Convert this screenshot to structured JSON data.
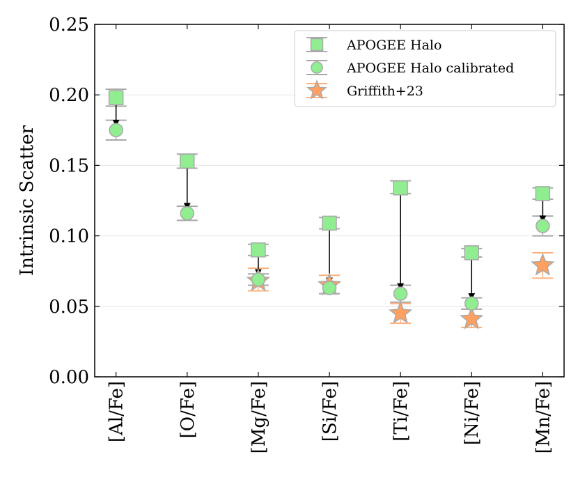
{
  "chart_data": {
    "type": "scatter",
    "title": "",
    "xlabel": "",
    "ylabel": "Intrinsic Scatter",
    "ylim": [
      0.0,
      0.25
    ],
    "yticks": [
      "0.00",
      "0.05",
      "0.10",
      "0.15",
      "0.20",
      "0.25"
    ],
    "grid": "horizontal",
    "legend_position": "top-right",
    "categories": [
      "[Al/Fe]",
      "[O/Fe]",
      "[Mg/Fe]",
      "[Si/Fe]",
      "[Ti/Fe]",
      "[Ni/Fe]",
      "[Mn/Fe]"
    ],
    "series": [
      {
        "name": "APOGEE Halo",
        "marker": "square",
        "color": "#90ee90",
        "edge_color": "#a9a9a9",
        "values": [
          0.198,
          0.153,
          0.09,
          0.109,
          0.134,
          0.088,
          0.13
        ],
        "err_low": [
          0.006,
          0.005,
          0.004,
          0.004,
          0.004,
          0.003,
          0.004
        ],
        "err_high": [
          0.006,
          0.005,
          0.004,
          0.004,
          0.005,
          0.003,
          0.004
        ]
      },
      {
        "name": "APOGEE Halo calibrated",
        "marker": "circle",
        "color": "#90ee90",
        "edge_color": "#a9a9a9",
        "values": [
          0.175,
          0.116,
          0.069,
          0.063,
          0.059,
          0.052,
          0.107
        ],
        "err_low": [
          0.007,
          0.005,
          0.004,
          0.004,
          0.006,
          0.004,
          0.007
        ],
        "err_high": [
          0.007,
          0.005,
          0.004,
          0.004,
          0.006,
          0.004,
          0.007
        ]
      },
      {
        "name": "Griffith+23",
        "marker": "star",
        "color": "#ffa060",
        "edge_color": "#a9a9a9",
        "categories": [
          "[Mg/Fe]",
          "[Si/Fe]",
          "[Ti/Fe]",
          "[Ni/Fe]",
          "[Mn/Fe]"
        ],
        "values": [
          0.068,
          0.065,
          0.045,
          0.041,
          0.079
        ],
        "err_low": [
          0.007,
          0.006,
          0.007,
          0.006,
          0.009
        ],
        "err_high": [
          0.009,
          0.007,
          0.007,
          0.007,
          0.009
        ]
      }
    ],
    "arrows": [
      {
        "category": "[Al/Fe]",
        "from": 0.198,
        "to": 0.175
      },
      {
        "category": "[O/Fe]",
        "from": 0.153,
        "to": 0.116
      },
      {
        "category": "[Mg/Fe]",
        "from": 0.09,
        "to": 0.069
      },
      {
        "category": "[Si/Fe]",
        "from": 0.109,
        "to": 0.063
      },
      {
        "category": "[Ti/Fe]",
        "from": 0.134,
        "to": 0.059
      },
      {
        "category": "[Ni/Fe]",
        "from": 0.088,
        "to": 0.052
      },
      {
        "category": "[Mn/Fe]",
        "from": 0.13,
        "to": 0.107
      }
    ]
  }
}
